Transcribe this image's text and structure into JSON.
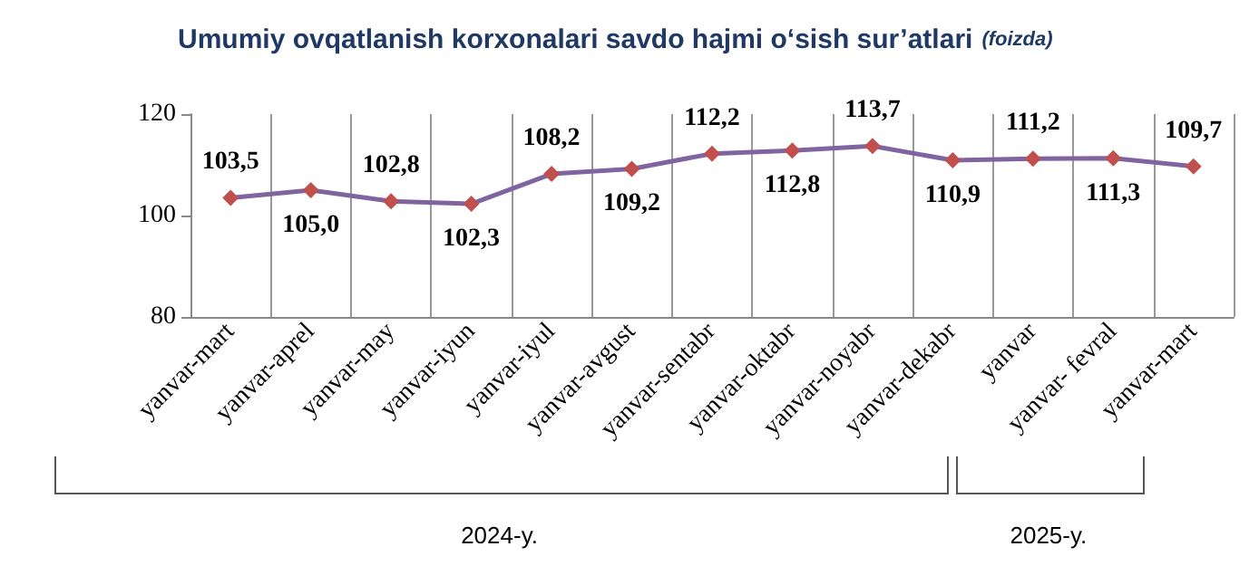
{
  "chart_data": {
    "type": "line",
    "title": "Umumiy ovqatlanish korxonalari savdo hajmi o‘sish sur’atlari",
    "subtitle": "(foizda)",
    "categories": [
      "yanvar-mart",
      "yanvar-aprel",
      "yanvar-may",
      "yanvar-iyun",
      "yanvar-iyul",
      "yanvar-avgust",
      "yanvar-sentabr",
      "yanvar-oktabr",
      "yanvar-noyabr",
      "yanvar-dekabr",
      "yanvar",
      "yanvar- fevral",
      "yanvar-mart"
    ],
    "series": [
      {
        "color": "#8064a2",
        "colors": [
          "#c0504d",
          "#c0504d",
          "#c0504d",
          "#c0504d",
          "#c0504d",
          "#c0504d",
          "#c0504d",
          "#c0504d",
          "#c0504d",
          "#c0504d",
          "#c0504d",
          "#c0504d",
          "#c0504d"
        ],
        "values": [
          103.5,
          105.0,
          102.8,
          102.3,
          108.2,
          109.2,
          112.2,
          112.8,
          113.7,
          110.9,
          111.2,
          111.3,
          109.7
        ],
        "value_labels": [
          "103,5",
          "105,0",
          "102,8",
          "102,3",
          "108,2",
          "109,2",
          "112,2",
          "112,8",
          "113,7",
          "110,9",
          "111,2",
          "111,3",
          "109,7"
        ]
      }
    ],
    "ylim": [
      80,
      120
    ],
    "yticks": [
      80,
      100,
      120
    ],
    "grid": "x",
    "marker": "diamond",
    "line_style": "solid",
    "annotations": [
      "2024-y.",
      "2025-y."
    ]
  }
}
